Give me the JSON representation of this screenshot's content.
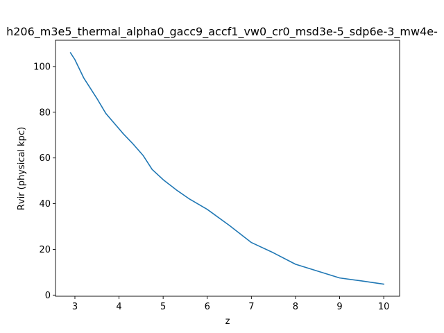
{
  "chart_data": {
    "type": "line",
    "title": "h206_m3e5_thermal_alpha0_gacc9_accf1_vw0_cr0_msd3e-5_sdp6e-3_mw4e-",
    "xlabel": "z",
    "ylabel": "Rvir (physical kpc)",
    "xlim": [
      2.56,
      10.36
    ],
    "ylim": [
      -0.5,
      111.5
    ],
    "xticks": [
      3,
      4,
      5,
      6,
      7,
      8,
      9,
      10
    ],
    "yticks": [
      0,
      20,
      40,
      60,
      80,
      100
    ],
    "grid": false,
    "series": [
      {
        "color": "#1f77b4",
        "x": [
          2.9,
          3.0,
          3.2,
          3.5,
          3.7,
          3.9,
          4.1,
          4.3,
          4.55,
          4.75,
          5.0,
          5.3,
          5.6,
          6.0,
          6.5,
          7.0,
          7.5,
          8.0,
          8.5,
          9.0,
          9.5,
          10.0
        ],
        "y": [
          106,
          103,
          95,
          86,
          79.5,
          75,
          70.5,
          66.5,
          61,
          55,
          50.5,
          46,
          42,
          37.5,
          30.5,
          23,
          18.5,
          13.5,
          10.5,
          7.5,
          6.2,
          4.8
        ]
      }
    ]
  }
}
